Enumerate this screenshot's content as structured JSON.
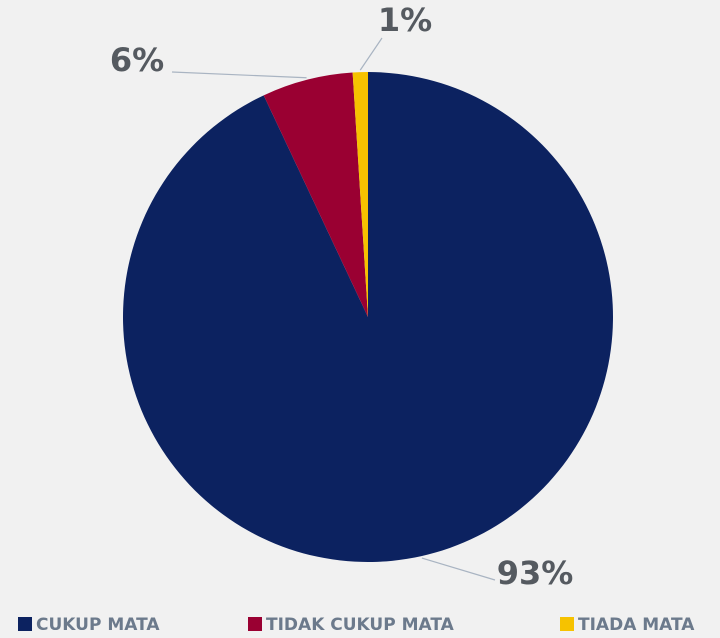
{
  "chart_data": {
    "type": "pie",
    "categories": [
      "CUKUP MATA",
      "TIDAK CUKUP MATA",
      "TIADA MATA"
    ],
    "values": [
      93,
      6,
      1
    ],
    "value_labels": [
      "93%",
      "6%",
      "1%"
    ],
    "colors": [
      "#0c2260",
      "#9a0032",
      "#f6c200"
    ],
    "legend": "bottom"
  }
}
